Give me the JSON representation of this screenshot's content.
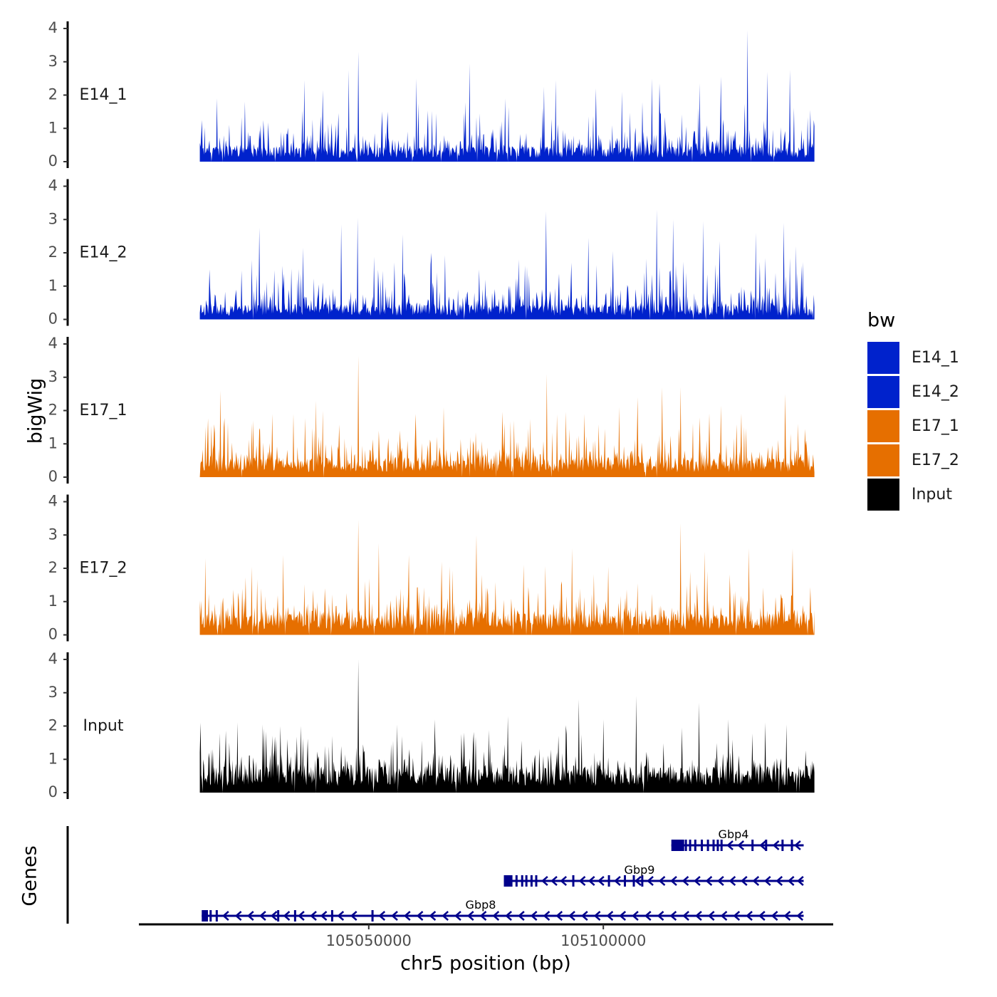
{
  "chart_data": {
    "type": "area",
    "ylabel": "bigWig",
    "xlabel": "chr5 position (bp)",
    "xlim": [
      105001000,
      105149000
    ],
    "x_ticks": [
      105050000,
      105100000
    ],
    "x_tick_labels": [
      "105050000",
      "105100000"
    ],
    "ylim": [
      0,
      4
    ],
    "y_ticks": [
      "0",
      "1",
      "2",
      "3",
      "4"
    ],
    "signal_range": [
      105014000,
      105145000
    ],
    "tracks": [
      {
        "name": "E14_1",
        "color": "#0022CC",
        "baseline": 0.32,
        "variability": 0.55,
        "peaks": [
          [
            105014400,
            1.25
          ],
          [
            105017600,
            1.9
          ],
          [
            105027000,
            1.1
          ],
          [
            105036300,
            2.45
          ],
          [
            105040200,
            2.15
          ],
          [
            105045800,
            2.75
          ],
          [
            105047800,
            3.3
          ],
          [
            105054000,
            1.5
          ],
          [
            105060200,
            2.5
          ],
          [
            105071500,
            2.95
          ],
          [
            105079000,
            1.9
          ],
          [
            105087300,
            2.25
          ],
          [
            105089800,
            2.45
          ],
          [
            105098400,
            2.2
          ],
          [
            105104000,
            2.1
          ],
          [
            105110400,
            2.5
          ],
          [
            105112000,
            2.35
          ],
          [
            105120500,
            2.35
          ],
          [
            105125000,
            2.55
          ],
          [
            105130700,
            3.95
          ],
          [
            105135000,
            2.7
          ],
          [
            105139700,
            2.75
          ]
        ]
      },
      {
        "name": "E14_2",
        "color": "#0022CC",
        "baseline": 0.32,
        "variability": 0.6,
        "peaks": [
          [
            105016000,
            1.5
          ],
          [
            105026600,
            2.75
          ],
          [
            105036000,
            2.15
          ],
          [
            105044200,
            2.85
          ],
          [
            105047600,
            3.05
          ],
          [
            105057200,
            2.55
          ],
          [
            105063400,
            2.0
          ],
          [
            105073600,
            1.5
          ],
          [
            105082000,
            1.8
          ],
          [
            105087800,
            3.25
          ],
          [
            105096800,
            2.45
          ],
          [
            105102000,
            2.05
          ],
          [
            105111400,
            3.3
          ],
          [
            105114800,
            3.0
          ],
          [
            105121300,
            2.95
          ],
          [
            105124800,
            2.35
          ],
          [
            105132500,
            2.6
          ],
          [
            105138400,
            2.9
          ],
          [
            105141000,
            2.2
          ]
        ]
      },
      {
        "name": "E17_1",
        "color": "#E66F00",
        "baseline": 0.42,
        "variability": 0.55,
        "peaks": [
          [
            105018400,
            2.6
          ],
          [
            105025400,
            1.7
          ],
          [
            105034000,
            1.9
          ],
          [
            105038800,
            2.3
          ],
          [
            105047800,
            3.65
          ],
          [
            105060000,
            1.9
          ],
          [
            105066000,
            2.1
          ],
          [
            105072800,
            1.35
          ],
          [
            105081000,
            1.7
          ],
          [
            105088000,
            3.1
          ],
          [
            105096000,
            1.9
          ],
          [
            105103300,
            2.1
          ],
          [
            105107300,
            2.4
          ],
          [
            105112500,
            2.7
          ],
          [
            105116500,
            2.7
          ],
          [
            105125000,
            2.15
          ],
          [
            105138800,
            2.5
          ],
          [
            105143000,
            1.45
          ]
        ]
      },
      {
        "name": "E17_2",
        "color": "#E66F00",
        "baseline": 0.45,
        "variability": 0.6,
        "peaks": [
          [
            105015200,
            2.3
          ],
          [
            105025000,
            2.05
          ],
          [
            105031800,
            2.4
          ],
          [
            105040600,
            1.4
          ],
          [
            105047800,
            3.45
          ],
          [
            105052200,
            2.75
          ],
          [
            105058500,
            2.4
          ],
          [
            105065500,
            2.2
          ],
          [
            105073000,
            3.0
          ],
          [
            105083000,
            2.1
          ],
          [
            105093300,
            2.6
          ],
          [
            105101000,
            2.05
          ],
          [
            105107300,
            1.55
          ],
          [
            105116400,
            3.35
          ],
          [
            105121600,
            2.5
          ],
          [
            105131000,
            2.6
          ],
          [
            105140400,
            2.6
          ]
        ]
      },
      {
        "name": "Input",
        "color": "#000000",
        "baseline": 0.55,
        "variability": 0.55,
        "peaks": [
          [
            105014200,
            2.1
          ],
          [
            105022000,
            2.1
          ],
          [
            105027400,
            2.05
          ],
          [
            105035500,
            2.0
          ],
          [
            105042200,
            1.7
          ],
          [
            105047800,
            4.0
          ],
          [
            105056000,
            2.05
          ],
          [
            105064000,
            2.2
          ],
          [
            105070400,
            1.8
          ],
          [
            105079600,
            2.3
          ],
          [
            105094800,
            2.8
          ],
          [
            105100000,
            2.2
          ],
          [
            105107000,
            2.9
          ],
          [
            105116800,
            1.95
          ],
          [
            105120400,
            2.7
          ],
          [
            105126600,
            2.2
          ],
          [
            105134500,
            2.1
          ],
          [
            105139000,
            2.05
          ]
        ]
      }
    ],
    "legend": {
      "title": "bw",
      "position": "right",
      "items": [
        {
          "label": "E14_1",
          "color": "#0022CC"
        },
        {
          "label": "E14_2",
          "color": "#0022CC"
        },
        {
          "label": "E17_1",
          "color": "#E66F00"
        },
        {
          "label": "E17_2",
          "color": "#E66F00"
        },
        {
          "label": "Input",
          "color": "#000000"
        }
      ]
    },
    "genes_panel_label": "Genes",
    "gene_color": "#00008B",
    "genes": [
      {
        "name": "Gbp4",
        "start": 105114500,
        "end": 105142700,
        "strand": "-",
        "exons": [
          105115800,
          105117600,
          105118500,
          105119600,
          105121000,
          105122300,
          105123500,
          105124400,
          105125200,
          105131800,
          105134700,
          105138200,
          105140200
        ],
        "chevrons": [
          105127000,
          105129300,
          105134000,
          105136800,
          105141400
        ]
      },
      {
        "name": "Gbp9",
        "start": 105078800,
        "end": 105142700,
        "strand": "-",
        "exons": [
          105080400,
          105081500,
          105082700,
          105083600,
          105084700,
          105085700,
          105093600,
          105101200,
          105104600,
          105106500,
          105108300
        ],
        "chevrons": [
          105087500,
          105089500,
          105091500,
          105095500,
          105097500,
          105099500,
          105103000,
          105107400,
          105110000,
          105112500,
          105115000,
          105117500,
          105120000,
          105122500,
          105125000,
          105127500,
          105130000,
          105132500,
          105135000,
          105137500,
          105140000,
          105142000
        ]
      },
      {
        "name": "Gbp8",
        "start": 105014400,
        "end": 105142700,
        "strand": "-",
        "exons": [
          105015500,
          105016300,
          105017600,
          105030700,
          105034300,
          105042200,
          105050800
        ],
        "chevrons": [
          105019500,
          105022200,
          105024800,
          105027400,
          105029800,
          105032500,
          105035600,
          105038200,
          105040400,
          105044000,
          105046800,
          105052800,
          105055500,
          105058200,
          105060900,
          105063600,
          105066300,
          105069000,
          105071700,
          105074400,
          105077100,
          105079800,
          105082500,
          105085200,
          105087900,
          105090600,
          105093300,
          105096000,
          105098700,
          105101400,
          105104100,
          105106800,
          105109500,
          105112200,
          105114900,
          105117600,
          105120300,
          105123000,
          105125700,
          105128400,
          105131100,
          105133800,
          105136500,
          105139200,
          105141900
        ]
      }
    ]
  }
}
